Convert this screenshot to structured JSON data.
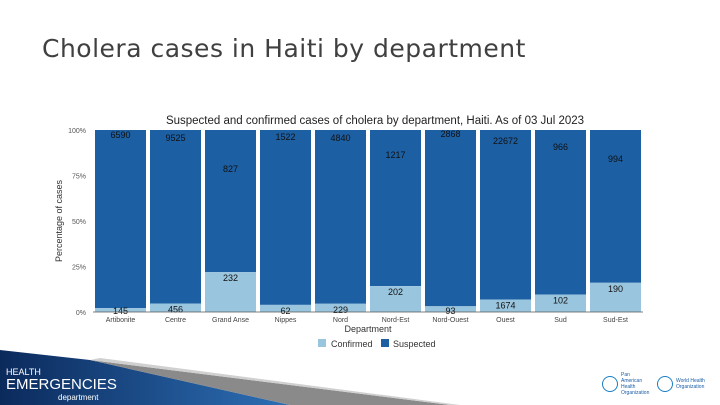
{
  "slide_title": "Cholera cases in Haiti by department",
  "chart_data": {
    "type": "bar",
    "stacked": "percent",
    "title": "Suspected and confirmed cases of cholera by department, Haiti. As of 03 Jul 2023",
    "xlabel": "Department",
    "ylabel": "Percentage of cases",
    "ylim": [
      0,
      100
    ],
    "yticks": [
      "0%",
      "25%",
      "50%",
      "75%",
      "100%"
    ],
    "categories": [
      "Artibonite",
      "Centre",
      "Grand Anse",
      "Nippes",
      "Nord",
      "Nord-Est",
      "Nord-Ouest",
      "Ouest",
      "Sud",
      "Sud-Est"
    ],
    "series": [
      {
        "name": "Confirmed",
        "color": "#9ac5de",
        "values": [
          145,
          456,
          232,
          62,
          229,
          202,
          93,
          1674,
          102,
          190
        ]
      },
      {
        "name": "Suspected",
        "color": "#1c5fa3",
        "values": [
          6590,
          9525,
          827,
          1522,
          4840,
          1217,
          2868,
          22672,
          966,
          994
        ]
      }
    ],
    "legend_position": "bottom"
  },
  "footer": {
    "line1": "HEALTH",
    "line2": "EMERGENCIES",
    "line3": "department"
  },
  "logos": {
    "paho": "Pan American Health Organization",
    "who": "World Health Organization"
  }
}
